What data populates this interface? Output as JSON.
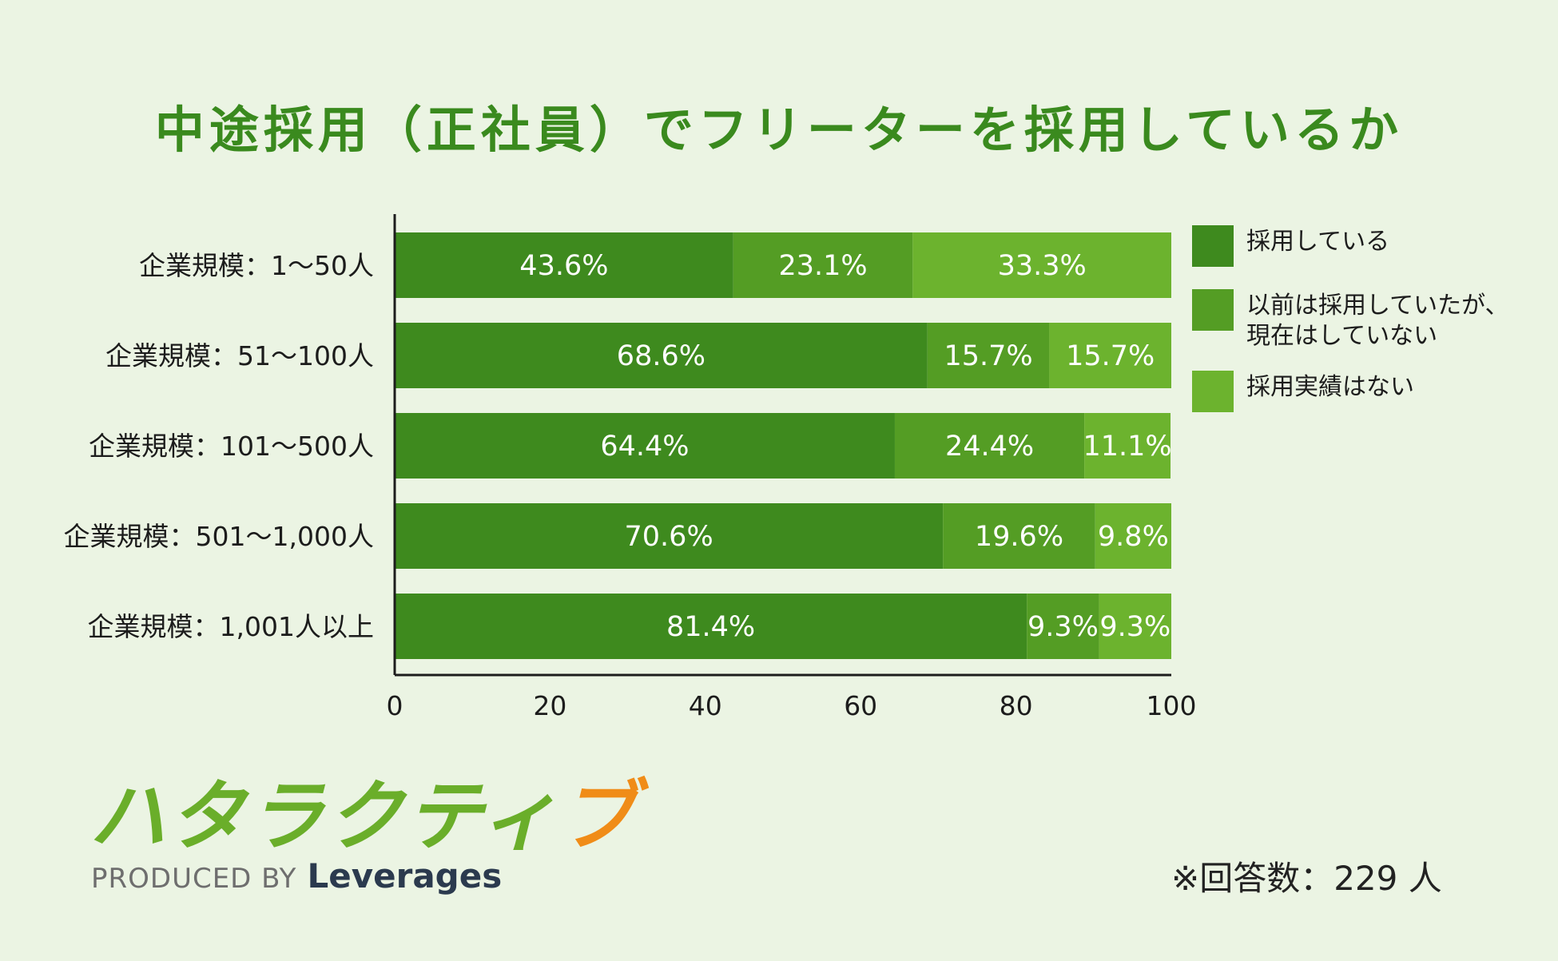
{
  "colors": {
    "background": "#ebf4e3",
    "title": "#3a8a1e",
    "series": [
      "#3e8a1e",
      "#549d24",
      "#6cb32e"
    ]
  },
  "chart_data": {
    "type": "bar",
    "orientation": "horizontal",
    "stacked": true,
    "title": "中途採用（正社員）でフリーターを採用しているか",
    "categories": [
      "企業規模：1〜50人",
      "企業規模：51〜100人",
      "企業規模：101〜500人",
      "企業規模：501〜1,000人",
      "企業規模：1,001人以上"
    ],
    "series": [
      {
        "name": "採用している",
        "values": [
          43.6,
          68.6,
          64.4,
          70.6,
          81.4
        ]
      },
      {
        "name": "以前は採用していたが、\n現在はしていない",
        "values": [
          23.1,
          15.7,
          24.4,
          19.6,
          9.3
        ]
      },
      {
        "name": "採用実績はない",
        "values": [
          33.3,
          15.7,
          11.1,
          9.8,
          9.3
        ]
      }
    ],
    "value_suffix": "%",
    "xlim": [
      0,
      100
    ],
    "xticks": [
      0,
      20,
      40,
      60,
      80,
      100
    ],
    "legend_position": "right"
  },
  "logo": {
    "main": "ハタラクティ",
    "accent": "ブ",
    "produced_by": "PRODUCED BY",
    "brand": "Leverages"
  },
  "footnote": "※回答数：229 人"
}
